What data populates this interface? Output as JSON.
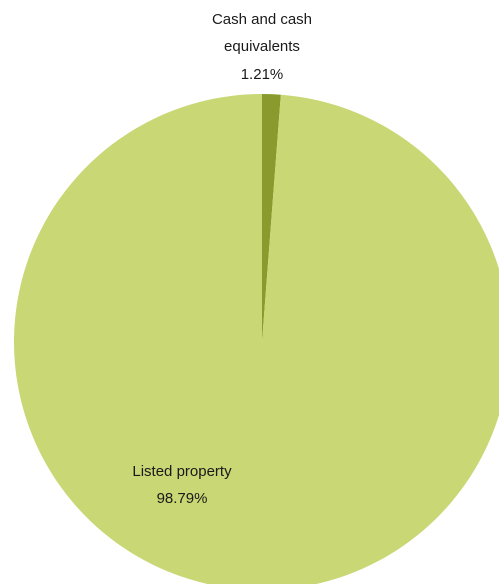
{
  "chart_data": {
    "type": "pie",
    "title": "",
    "start_angle_deg": 0,
    "slices": [
      {
        "label": "Cash and cash equivalents",
        "label_lines": [
          "Cash and cash",
          "equivalents"
        ],
        "value": 1.21,
        "value_label": "1.21%",
        "color": "#8a9a2c"
      },
      {
        "label": "Listed property",
        "label_lines": [
          "Listed property"
        ],
        "value": 98.79,
        "value_label": "98.79%",
        "color": "#c9d775"
      }
    ],
    "legend": "none"
  }
}
